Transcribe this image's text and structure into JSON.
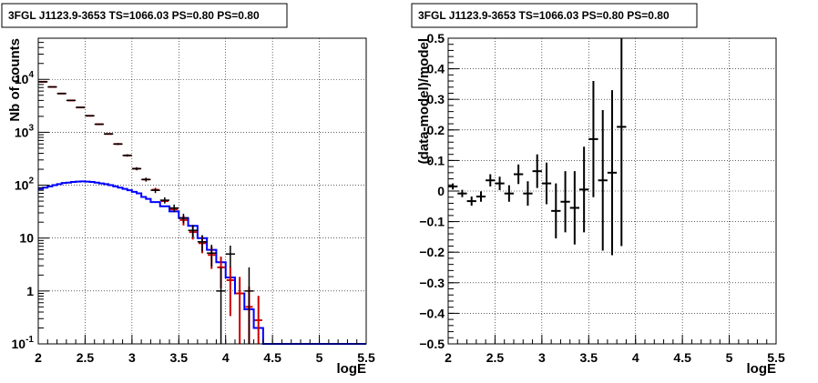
{
  "chart_data": [
    {
      "type": "line",
      "title": "3FGL J1123.9-3653 TS=1066.03 PS=0.80 PS=0.80",
      "xlabel": "logE",
      "ylabel": "Nb of counts",
      "xlim": [
        2,
        5.5
      ],
      "ylim": [
        0.1,
        60000
      ],
      "yscale": "log",
      "grid": true,
      "x_ticks": [
        "2",
        "2.5",
        "3",
        "3.5",
        "4",
        "4.5",
        "5",
        "5.5"
      ],
      "y_ticks": [
        "10^-1",
        "1",
        "10",
        "10^2",
        "10^3",
        "10^4"
      ],
      "colors": {
        "data": "#000000",
        "model": "#0000ff",
        "total": "#cc0000"
      },
      "series": [
        {
          "key": "data",
          "x": [
            2.05,
            2.15,
            2.25,
            2.35,
            2.45,
            2.55,
            2.65,
            2.75,
            2.85,
            2.95,
            3.05,
            3.15,
            3.25,
            3.35,
            3.45,
            3.55,
            3.65,
            3.75,
            3.85,
            3.95,
            4.05,
            4.15,
            4.25
          ],
          "y": [
            9000,
            7200,
            5400,
            4000,
            2950,
            2050,
            1420,
            930,
            600,
            365,
            205,
            128,
            80,
            52,
            37,
            24,
            14,
            8.5,
            5.2,
            1,
            5,
            0,
            1
          ],
          "err_lo": [
            95,
            85,
            73,
            63,
            54,
            45,
            38,
            30,
            24,
            19,
            14,
            11,
            9,
            7,
            6,
            4.9,
            3.7,
            2.9,
            2.3,
            0.95,
            2.2,
            0,
            0.95
          ],
          "err_hi": [
            95,
            85,
            73,
            63,
            54,
            45,
            38,
            30,
            24,
            19,
            14,
            11,
            9,
            7,
            6,
            4.9,
            3.7,
            2.9,
            2.3,
            1.8,
            2.2,
            0,
            1.8
          ]
        },
        {
          "key": "model",
          "edges": [
            2.0,
            2.05,
            2.1,
            2.15,
            2.2,
            2.25,
            2.3,
            2.35,
            2.4,
            2.45,
            2.5,
            2.55,
            2.6,
            2.65,
            2.7,
            2.75,
            2.8,
            2.85,
            2.9,
            2.95,
            3.0,
            3.05,
            3.1,
            3.15,
            3.2,
            3.3,
            3.4,
            3.5,
            3.6,
            3.7,
            3.8,
            3.9,
            4.0,
            4.1,
            4.2,
            4.3,
            4.4,
            5.5
          ],
          "y": [
            85,
            90,
            95,
            100,
            105,
            110,
            112,
            115,
            117,
            118,
            117,
            115,
            112,
            108,
            105,
            100,
            95,
            90,
            85,
            80,
            75,
            70,
            60,
            55,
            48,
            40,
            32,
            24,
            17,
            10,
            6,
            3.5,
            1.8,
            0.9,
            0.45,
            0.2,
            0.1
          ]
        },
        {
          "key": "total",
          "x": [
            2.05,
            2.15,
            2.25,
            2.35,
            2.45,
            2.55,
            2.65,
            2.75,
            2.85,
            2.95,
            3.05,
            3.15,
            3.25,
            3.35,
            3.45,
            3.55,
            3.65,
            3.75,
            3.85,
            3.95,
            4.05,
            4.15,
            4.25,
            4.35
          ],
          "y": [
            9000,
            7200,
            5400,
            4000,
            2950,
            2050,
            1420,
            930,
            600,
            365,
            205,
            128,
            82,
            50,
            35,
            22,
            13,
            8,
            4.8,
            2.8,
            1.6,
            0.9,
            0.5,
            0.28
          ]
        }
      ]
    },
    {
      "type": "scatter",
      "title": "3FGL J1123.9-3653 TS=1066.03 PS=0.80 PS=0.80",
      "xlabel": "logE",
      "ylabel": "(data-model)/model",
      "xlim": [
        2,
        5.5
      ],
      "ylim": [
        -0.5,
        0.5
      ],
      "grid": true,
      "x_ticks": [
        "2",
        "2.5",
        "3",
        "3.5",
        "4",
        "4.5",
        "5",
        "5.5"
      ],
      "y_ticks": [
        "−0.5",
        "−0.4",
        "−0.3",
        "−0.2",
        "−0.1",
        "0",
        "0.1",
        "0.2",
        "0.3",
        "0.4",
        "0.5"
      ],
      "series": [
        {
          "key": "residuals",
          "x": [
            2.05,
            2.15,
            2.25,
            2.35,
            2.45,
            2.55,
            2.65,
            2.75,
            2.85,
            2.95,
            3.05,
            3.15,
            3.25,
            3.35,
            3.45,
            3.55,
            3.65,
            3.75,
            3.85
          ],
          "y": [
            0.015,
            -0.008,
            -0.033,
            -0.018,
            0.035,
            0.025,
            -0.008,
            0.055,
            -0.008,
            0.065,
            0.025,
            -0.065,
            -0.035,
            -0.055,
            0.005,
            0.17,
            0.035,
            0.06,
            0.21
          ],
          "err": [
            0.01,
            0.012,
            0.015,
            0.017,
            0.02,
            0.022,
            0.027,
            0.032,
            0.04,
            0.055,
            0.068,
            0.09,
            0.1,
            0.12,
            0.14,
            0.19,
            0.23,
            0.27,
            0.39
          ]
        }
      ]
    }
  ]
}
